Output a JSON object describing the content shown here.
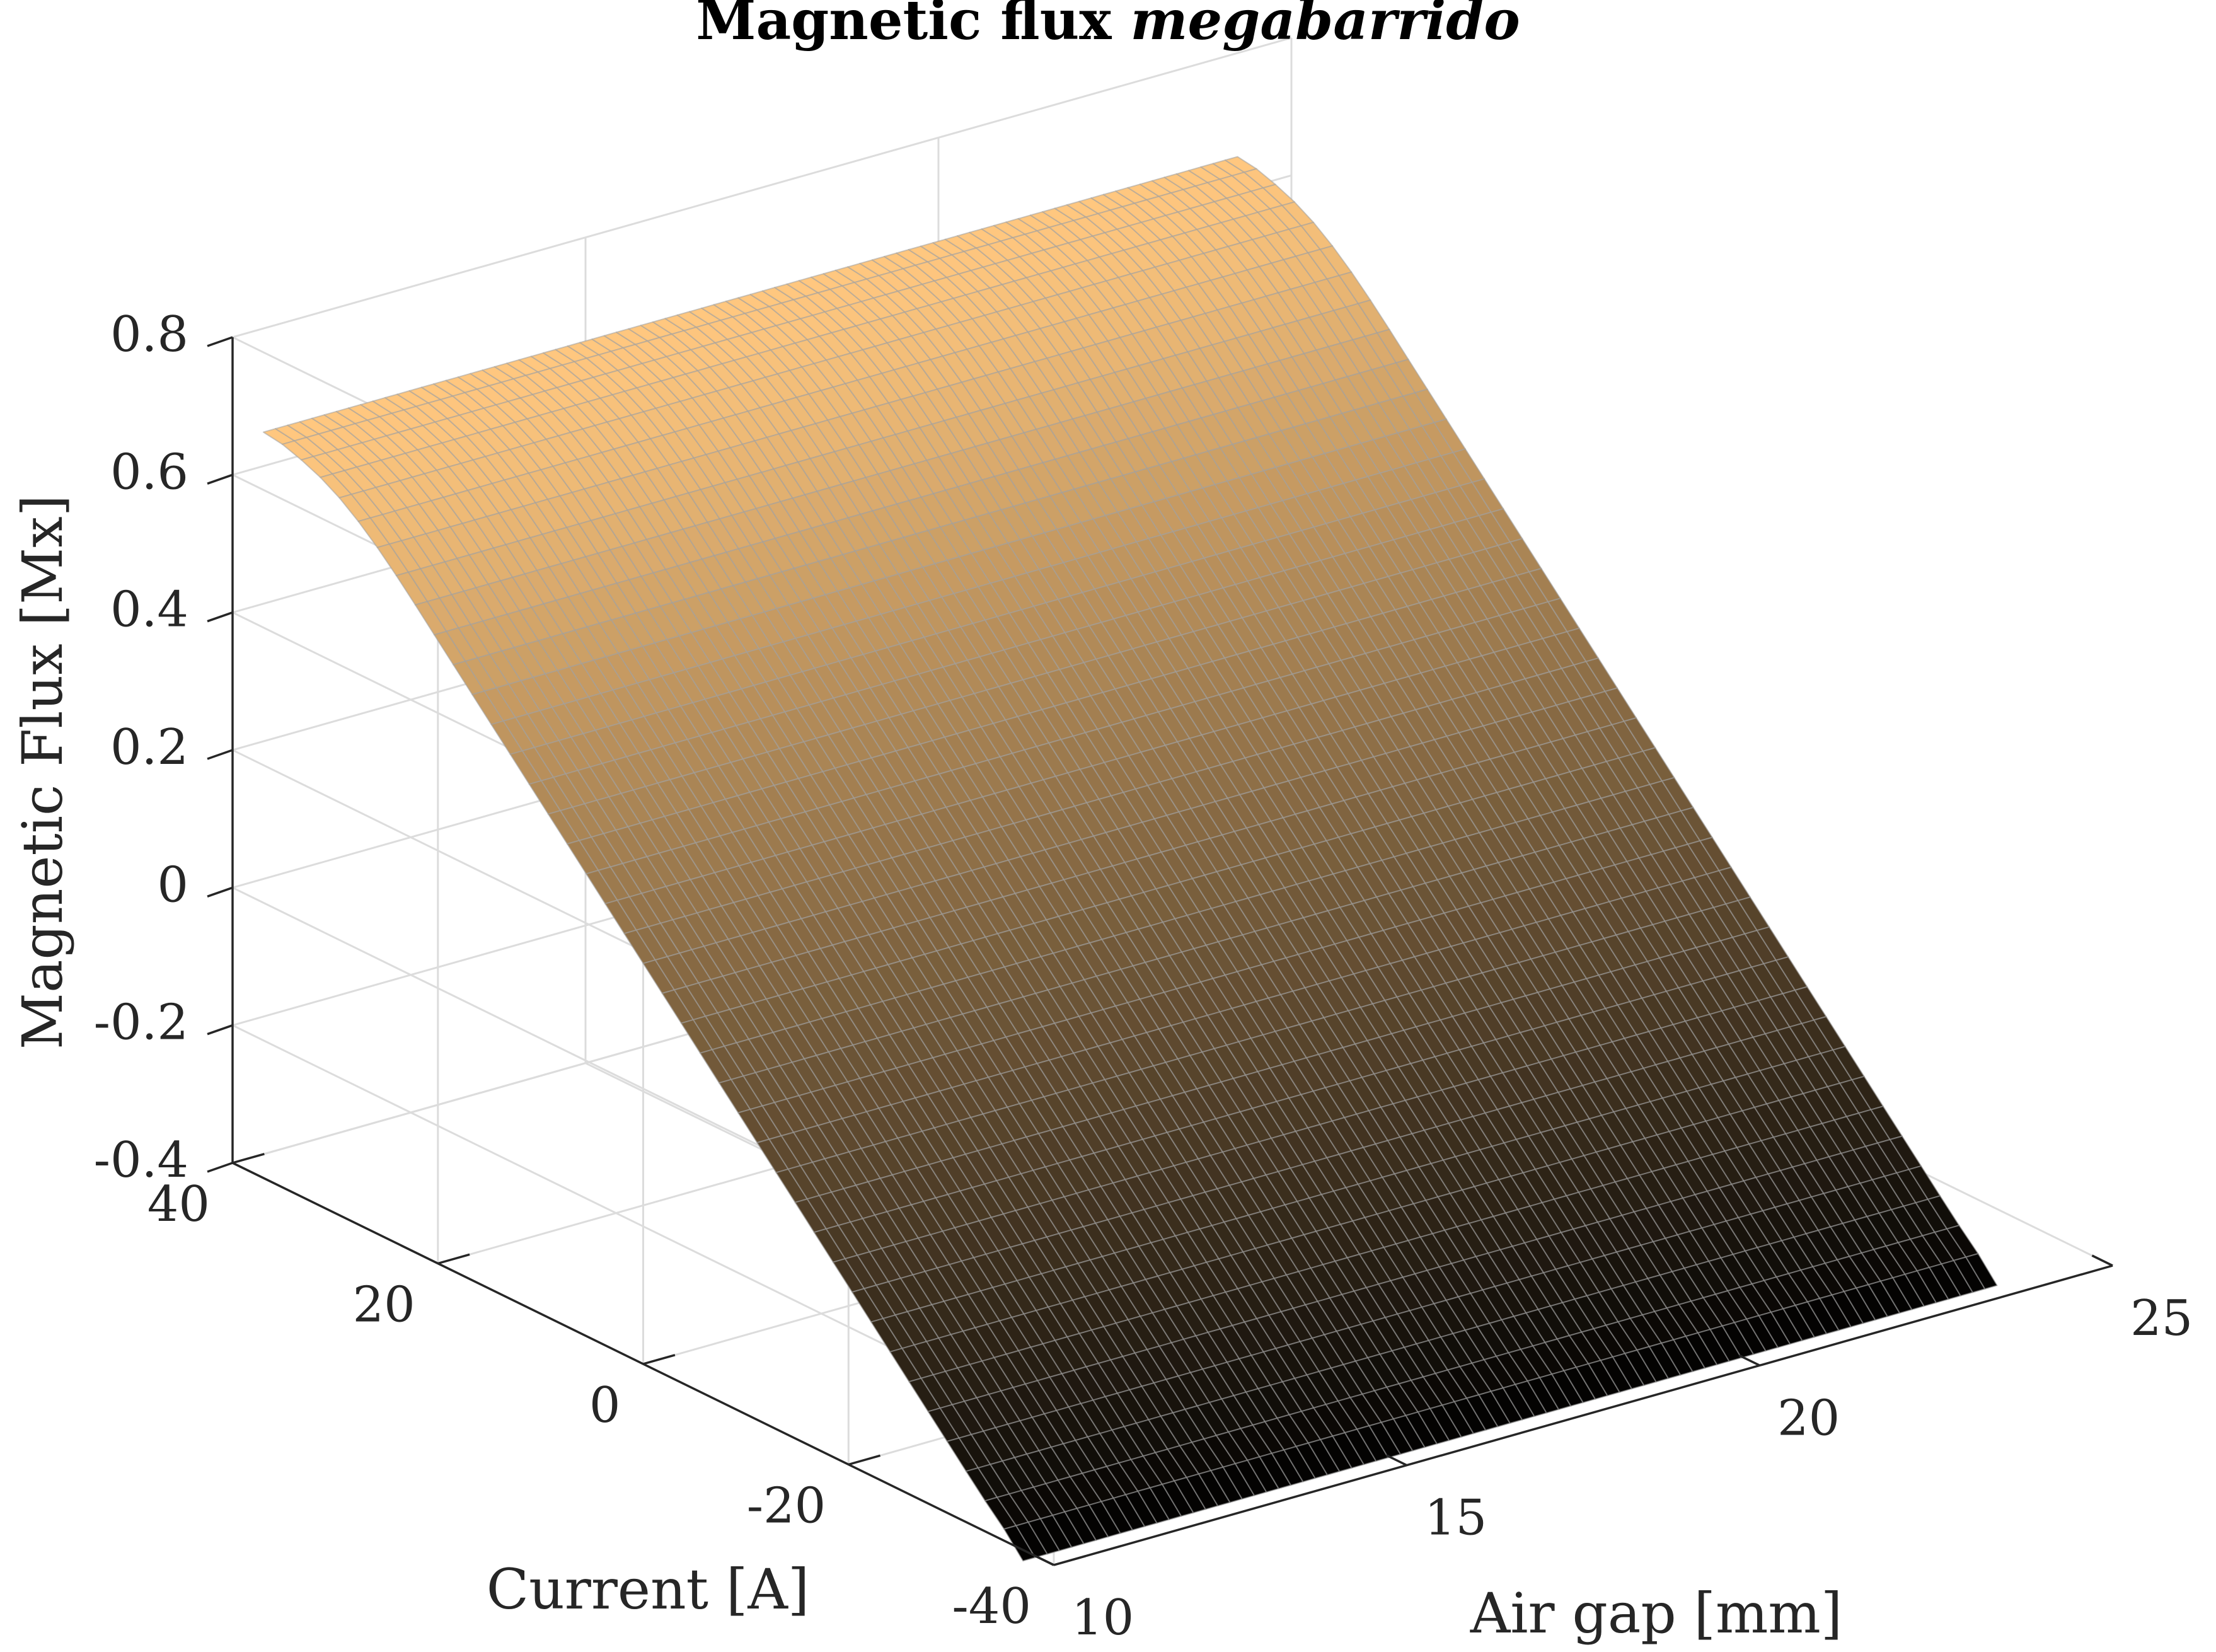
{
  "chart_data": {
    "type": "surface",
    "title": "Magnetic flux",
    "title_emphasis": "megabarrido",
    "xlabel": "Air gap [mm]",
    "ylabel": "Current [A]",
    "zlabel": "Magnetic Flux [Mx]",
    "xlim": [
      10,
      25
    ],
    "ylim": [
      -40,
      40
    ],
    "zlim": [
      -0.4,
      0.8
    ],
    "x_ticks": [
      "10",
      "15",
      "20",
      "25"
    ],
    "y_ticks": [
      "-40",
      "-20",
      "0",
      "20",
      "40"
    ],
    "z_ticks": [
      "-0.4",
      "-0.2",
      "0",
      "0.2",
      "0.4",
      "0.6",
      "0.8"
    ],
    "grid": true,
    "colormap": "copper",
    "colormap_colors": [
      "#000000",
      "#ffc77f"
    ],
    "surface": {
      "x_range": [
        10,
        23.8
      ],
      "y_range": [
        -37,
        37
      ],
      "z_at_y_min": -0.416,
      "z_at_y_max": 0.684,
      "saturation_current": 24,
      "z_at_saturation": 0.57,
      "grid_columns": 80,
      "grid_rows": 40
    },
    "view": {
      "azimuth": 30
    }
  }
}
